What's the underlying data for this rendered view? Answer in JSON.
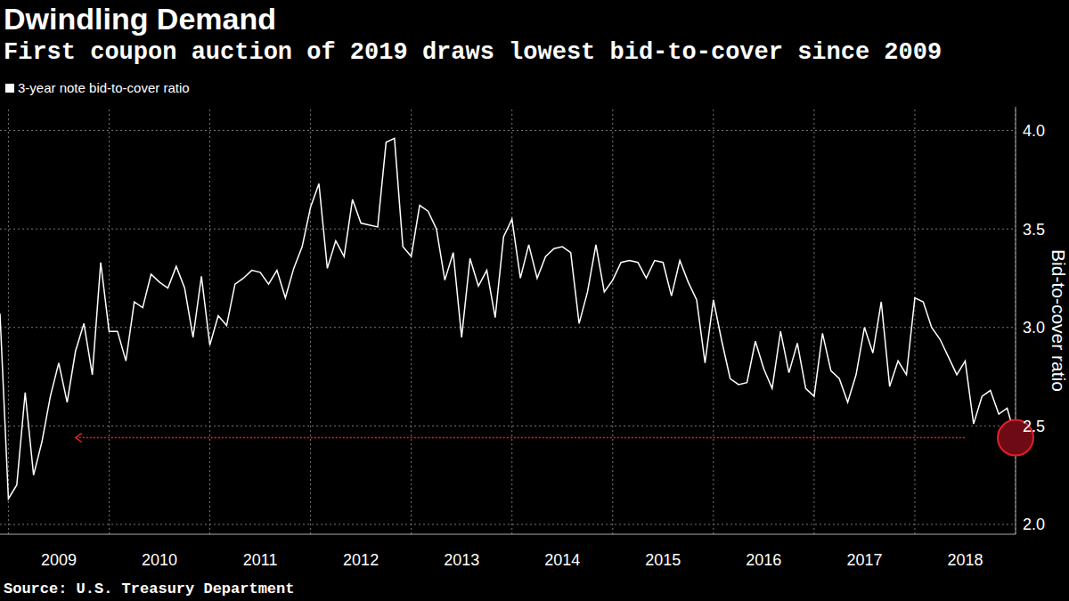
{
  "chart_data": {
    "type": "line",
    "title": "Dwindling Demand",
    "subtitle": "First coupon auction of 2019 draws lowest bid-to-cover since 2009",
    "y_label": "Bid-to-cover ratio",
    "source": "Source: U.S. Treasury Department",
    "categories": [
      null,
      null,
      null,
      null,
      null,
      null,
      null,
      "2009",
      null,
      null,
      null,
      null,
      null,
      null,
      null,
      null,
      null,
      null,
      null,
      "2010",
      null,
      null,
      null,
      null,
      null,
      null,
      null,
      null,
      null,
      null,
      null,
      "2011",
      null,
      null,
      null,
      null,
      null,
      null,
      null,
      null,
      null,
      null,
      null,
      "2012",
      null,
      null,
      null,
      null,
      null,
      null,
      null,
      null,
      null,
      null,
      null,
      "2013",
      null,
      null,
      null,
      null,
      null,
      null,
      null,
      null,
      null,
      null,
      null,
      "2014",
      null,
      null,
      null,
      null,
      null,
      null,
      null,
      null,
      null,
      null,
      null,
      "2015",
      null,
      null,
      null,
      null,
      null,
      null,
      null,
      null,
      null,
      null,
      null,
      "2016",
      null,
      null,
      null,
      null,
      null,
      null,
      null,
      null,
      null,
      null,
      null,
      "2017",
      null,
      null,
      null,
      null,
      null,
      null,
      null,
      null,
      null,
      null,
      null,
      "2018",
      null,
      null,
      null,
      null,
      null,
      null
    ],
    "series": [
      {
        "name": "3-year note bid-to-cover ratio",
        "color": "#ffffff",
        "values": [
          3.07,
          2.13,
          2.2,
          2.67,
          2.25,
          2.42,
          2.65,
          2.82,
          2.62,
          2.88,
          3.02,
          2.76,
          3.33,
          2.98,
          2.98,
          2.83,
          3.13,
          3.1,
          3.27,
          3.23,
          3.2,
          3.31,
          3.2,
          2.95,
          3.26,
          2.91,
          3.06,
          3.01,
          3.22,
          3.25,
          3.29,
          3.28,
          3.22,
          3.29,
          3.15,
          3.3,
          3.41,
          3.61,
          3.73,
          3.3,
          3.44,
          3.36,
          3.65,
          3.53,
          3.52,
          3.51,
          3.94,
          3.96,
          3.41,
          3.36,
          3.62,
          3.59,
          3.5,
          3.24,
          3.38,
          2.95,
          3.35,
          3.21,
          3.29,
          3.05,
          3.46,
          3.55,
          3.25,
          3.42,
          3.25,
          3.36,
          3.4,
          3.41,
          3.38,
          3.02,
          3.18,
          3.42,
          3.18,
          3.24,
          3.33,
          3.34,
          3.33,
          3.25,
          3.34,
          3.33,
          3.16,
          3.34,
          3.23,
          3.14,
          2.82,
          3.14,
          2.93,
          2.74,
          2.71,
          2.72,
          2.93,
          2.79,
          2.69,
          2.98,
          2.77,
          2.92,
          2.69,
          2.65,
          2.97,
          2.78,
          2.74,
          2.62,
          2.76,
          3.0,
          2.87,
          3.13,
          2.7,
          2.83,
          2.76,
          3.15,
          3.13,
          3.0,
          2.94,
          2.85,
          2.76,
          2.83,
          2.51,
          2.65,
          2.68,
          2.56,
          2.59,
          2.44
        ]
      }
    ],
    "ylim": [
      1.95,
      4.12
    ],
    "yticks": [
      {
        "value": 2,
        "label": "2.0"
      },
      2.5,
      {
        "value": 3,
        "label": "3.0"
      },
      3.5,
      {
        "value": 4,
        "label": "4.0"
      }
    ],
    "grid": true
  }
}
